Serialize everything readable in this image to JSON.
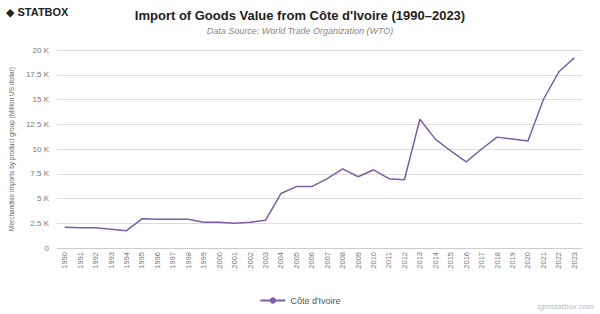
{
  "chart_data": {
    "type": "line",
    "title": "Import of Goods Value from Côte d'Ivoire (1990–2023)",
    "subtitle": "Data Source: World Trade Organization (WTO)",
    "ylabel": "Merchandise imports by product group (Million US dollar)",
    "annotations": [
      "◆ STATBOX",
      "tgmstatbox.com"
    ],
    "x": [
      1990,
      1991,
      1992,
      1993,
      1994,
      1995,
      1996,
      1997,
      1998,
      1999,
      2000,
      2001,
      2002,
      2003,
      2004,
      2005,
      2006,
      2007,
      2008,
      2009,
      2010,
      2011,
      2012,
      2013,
      2014,
      2015,
      2016,
      2017,
      2018,
      2019,
      2020,
      2021,
      2022,
      2023
    ],
    "series": [
      {
        "name": "Côte d'Ivoire",
        "color": "#7B5EA7",
        "values": [
          2100,
          2050,
          2050,
          1900,
          1750,
          2950,
          2900,
          2900,
          2900,
          2600,
          2600,
          2500,
          2600,
          2800,
          5500,
          6200,
          6200,
          7000,
          8000,
          7200,
          7900,
          7000,
          6900,
          13000,
          11000,
          9800,
          8700,
          10000,
          11200,
          11000,
          10800,
          15000,
          17800,
          19200
        ]
      }
    ],
    "xlim": [
      1989.5,
      2023.5
    ],
    "xticks": [
      1990,
      1991,
      1992,
      1993,
      1994,
      1995,
      1996,
      1997,
      1998,
      1999,
      2000,
      2001,
      2002,
      2003,
      2004,
      2005,
      2006,
      2007,
      2008,
      2009,
      2010,
      2011,
      2012,
      2013,
      2014,
      2015,
      2016,
      2017,
      2018,
      2019,
      2020,
      2021,
      2022,
      2023
    ],
    "ylim": [
      0,
      20000
    ],
    "yticks": [
      0,
      {
        "value": 2500,
        "label": "2.5 K"
      },
      {
        "value": 5000,
        "label": "5 K"
      },
      {
        "value": 7500,
        "label": "7.5 K"
      },
      {
        "value": 10000,
        "label": "10 K"
      },
      {
        "value": 12500,
        "label": "12.5 K"
      },
      {
        "value": 15000,
        "label": "15 K"
      },
      {
        "value": 17500,
        "label": "17.5 K"
      },
      {
        "value": 20000,
        "label": "20 K"
      }
    ],
    "grid": true,
    "legend": "bottom"
  }
}
